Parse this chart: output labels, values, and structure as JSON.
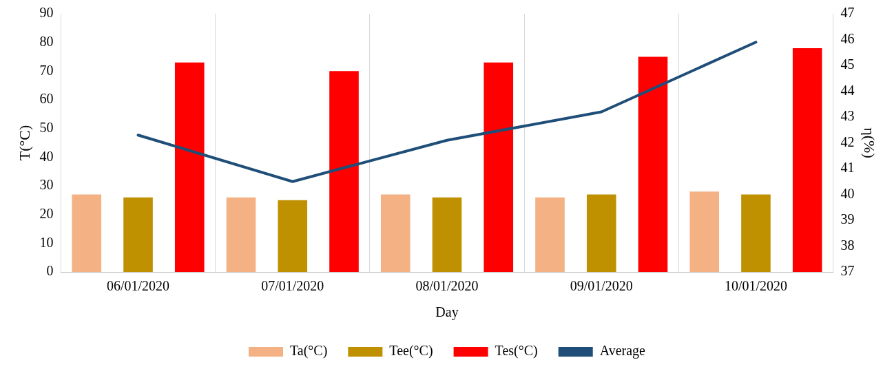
{
  "chart_data": {
    "type": "bar",
    "xlabel": "Day",
    "ylabel": "T(°C)",
    "y2label": "η(%)",
    "categories": [
      "06/01/2020",
      "07/01/2020",
      "08/01/2020",
      "09/01/2020",
      "10/01/2020"
    ],
    "series": [
      {
        "name": "Ta(°C)",
        "color": "#f4b183",
        "values": [
          27,
          26,
          27,
          26,
          28
        ]
      },
      {
        "name": "Tee(°C)",
        "color": "#bf9000",
        "values": [
          26,
          25,
          26,
          27,
          27
        ]
      },
      {
        "name": "Tes(°C)",
        "color": "#ff0000",
        "values": [
          73,
          70,
          73,
          75,
          78
        ]
      },
      {
        "name": "Average",
        "type": "line",
        "axis": "y2",
        "color": "#1f4e79",
        "values": [
          42.3,
          40.5,
          42.1,
          43.2,
          45.9
        ]
      }
    ],
    "ylim": [
      0,
      90
    ],
    "yticks": [
      0,
      10,
      20,
      30,
      40,
      50,
      60,
      70,
      80,
      90
    ],
    "y2lim": [
      37,
      47
    ],
    "y2ticks": [
      37,
      38,
      39,
      40,
      41,
      42,
      43,
      44,
      45,
      46,
      47
    ],
    "grid": "x",
    "legend": "bottom",
    "marker": "none"
  }
}
